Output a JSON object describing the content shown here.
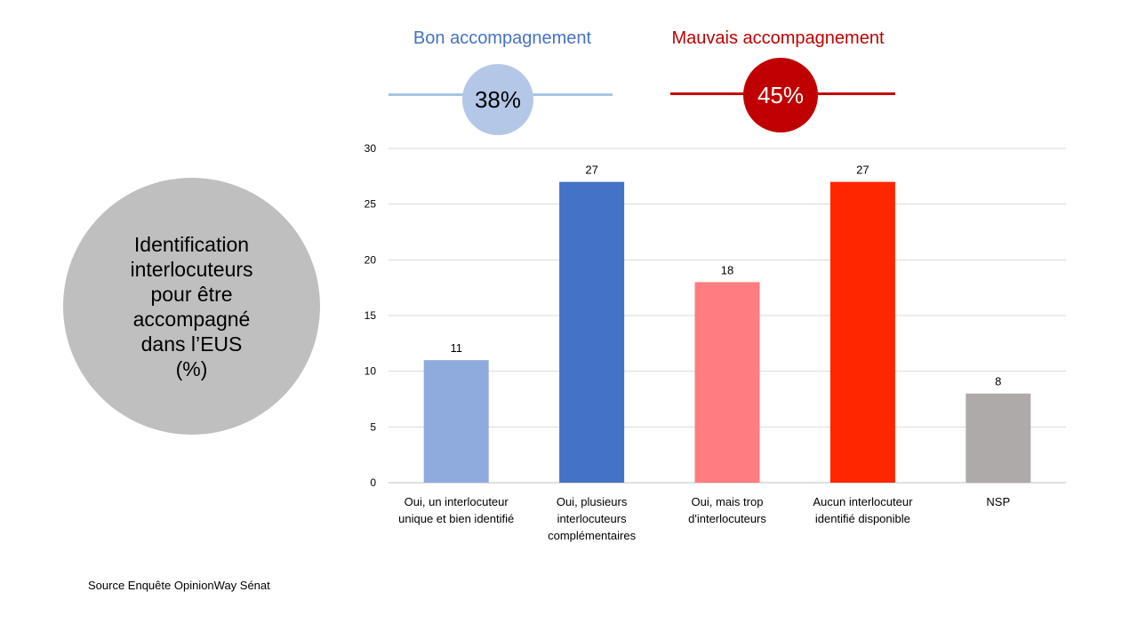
{
  "header": {
    "good": {
      "label": "Bon accompagnement",
      "value": "38%",
      "color": "#4472c4",
      "line_color": "#a9c4e6",
      "circle_color": "#b4c7e7"
    },
    "bad": {
      "label": "Mauvais accompagnement",
      "value": "45%",
      "color": "#c00000",
      "line_color": "#c00000",
      "circle_color": "#c00000"
    }
  },
  "topic": "Identification\ninterlocuteurs\npour être\naccompagné\ndans l’EUS\n(%)",
  "source": "Source Enquête OpinionWay Sénat",
  "chart_data": {
    "type": "bar",
    "categories": [
      [
        "Oui, un interlocuteur",
        "unique et bien identifié"
      ],
      [
        "Oui, plusieurs",
        "interlocuteurs",
        "complémentaires"
      ],
      [
        "Oui, mais trop",
        "d'interlocuteurs"
      ],
      [
        "Aucun interlocuteur",
        "identifié disponible"
      ],
      [
        "NSP"
      ]
    ],
    "values": [
      11,
      27,
      18,
      27,
      8
    ],
    "colors": [
      "#8faadc",
      "#4472c4",
      "#ff7c80",
      "#ff2600",
      "#aeaaaa"
    ],
    "ylim": [
      0,
      30
    ],
    "yticks": [
      0,
      5,
      10,
      15,
      20,
      25,
      30
    ],
    "grid": true,
    "data_labels": true
  }
}
